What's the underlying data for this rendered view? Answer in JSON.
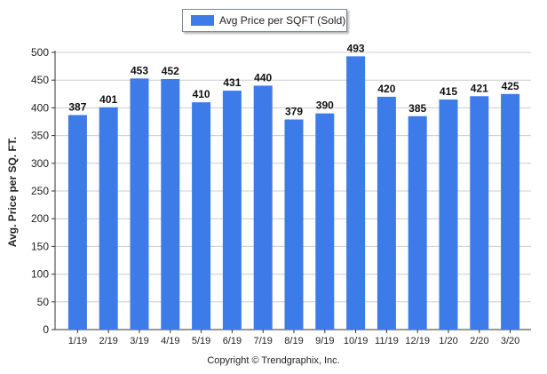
{
  "legend": {
    "label": "Avg Price per SQFT (Sold)",
    "color": "#3d7be8"
  },
  "footer": "Copyright © Trendgraphix, Inc.",
  "chart_data": {
    "type": "bar",
    "title": "",
    "xlabel": "",
    "ylabel": "Avg. Price per SQ. FT.",
    "ylim": [
      0,
      500
    ],
    "yticks": [
      0,
      50,
      100,
      150,
      200,
      250,
      300,
      350,
      400,
      450,
      500
    ],
    "grid": true,
    "legend_position": "top-center",
    "categories": [
      "1/19",
      "2/19",
      "3/19",
      "4/19",
      "5/19",
      "6/19",
      "7/19",
      "8/19",
      "9/19",
      "10/19",
      "11/19",
      "12/19",
      "1/20",
      "2/20",
      "3/20"
    ],
    "series": [
      {
        "name": "Avg Price per SQFT (Sold)",
        "values": [
          387,
          401,
          453,
          452,
          410,
          431,
          440,
          379,
          390,
          493,
          420,
          385,
          415,
          421,
          425
        ]
      }
    ],
    "data_labels": [
      "387",
      "401",
      "453",
      "452",
      "410",
      "431",
      "440",
      "379",
      "390",
      "493",
      "420",
      "385",
      "415",
      "421",
      "425"
    ]
  }
}
